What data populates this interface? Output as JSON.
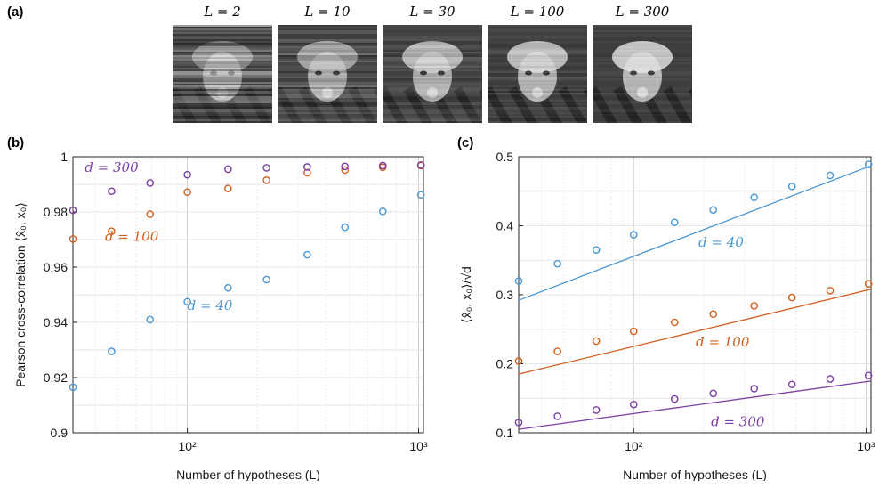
{
  "panels": {
    "a": "(a)",
    "b": "(b)",
    "c": "(c)"
  },
  "thumbnails": [
    {
      "label": "L = 2",
      "noise": 0.85
    },
    {
      "label": "L = 10",
      "noise": 0.55
    },
    {
      "label": "L = 30",
      "noise": 0.35
    },
    {
      "label": "L = 100",
      "noise": 0.22
    },
    {
      "label": "L = 300",
      "noise": 0.15
    }
  ],
  "chart_data": [
    {
      "type": "scatter",
      "xscale": "log",
      "xlim": [
        32,
        1050
      ],
      "ylim": [
        0.9,
        1.0
      ],
      "xlabel": "Number of hypotheses (L)",
      "ylabel": "Pearson cross-correlation ⟨x̂₀, x₀⟩",
      "xticks": [
        {
          "value": 100,
          "label": "10²"
        },
        {
          "value": 1000,
          "label": "10³"
        }
      ],
      "yticks": [
        0.9,
        0.92,
        0.94,
        0.96,
        0.98,
        1
      ],
      "ytick_labels": [
        "0.9",
        "0.92",
        "0.94",
        "0.96",
        "0.98",
        "1"
      ],
      "grid": true,
      "x": [
        32,
        47,
        69,
        100,
        150,
        220,
        330,
        480,
        700,
        1024
      ],
      "series": [
        {
          "name": "d = 40",
          "color": "#4a98d3",
          "values": [
            0.9165,
            0.9295,
            0.941,
            0.9475,
            0.9525,
            0.9555,
            0.9645,
            0.9745,
            0.9802,
            0.9862
          ],
          "label_at": [
            100,
            0.9445
          ]
        },
        {
          "name": "d = 100",
          "color": "#d2601f",
          "values": [
            0.9702,
            0.973,
            0.9792,
            0.9872,
            0.9885,
            0.9915,
            0.9942,
            0.9952,
            0.9962,
            0.9968
          ],
          "label_at": [
            44,
            0.9695
          ]
        },
        {
          "name": "d = 300",
          "color": "#7b3fa1",
          "values": [
            0.9806,
            0.9875,
            0.9905,
            0.9935,
            0.9955,
            0.996,
            0.9963,
            0.9965,
            0.9968,
            0.997
          ],
          "label_at": [
            36,
            0.9945
          ]
        }
      ]
    },
    {
      "type": "scatter",
      "xscale": "log",
      "xlim": [
        32,
        1050
      ],
      "ylim": [
        0.1,
        0.5
      ],
      "xlabel": "Number of hypotheses (L)",
      "ylabel": "⟨x̂₀, x₀⟩/√d",
      "xticks": [
        {
          "value": 100,
          "label": "10²"
        },
        {
          "value": 1000,
          "label": "10³"
        }
      ],
      "yticks": [
        0.1,
        0.2,
        0.3,
        0.4,
        0.5
      ],
      "ytick_labels": [
        "0.1",
        "0.2",
        "0.3",
        "0.4",
        "0.5"
      ],
      "grid": true,
      "x": [
        32,
        47,
        69,
        100,
        150,
        220,
        330,
        480,
        700,
        1024
      ],
      "series": [
        {
          "name": "d = 40",
          "color": "#4a98d3",
          "values": [
            0.32,
            0.345,
            0.365,
            0.387,
            0.405,
            0.423,
            0.441,
            0.457,
            0.473,
            0.489
          ],
          "fit": [
            [
              32,
              0.292
            ],
            [
              1050,
              0.487
            ]
          ],
          "label_at": [
            190,
            0.37
          ]
        },
        {
          "name": "d = 100",
          "color": "#d2601f",
          "values": [
            0.204,
            0.218,
            0.233,
            0.247,
            0.26,
            0.272,
            0.284,
            0.296,
            0.306,
            0.316
          ],
          "fit": [
            [
              32,
              0.185
            ],
            [
              1050,
              0.308
            ]
          ],
          "label_at": [
            185,
            0.225
          ]
        },
        {
          "name": "d = 300",
          "color": "#7b3fa1",
          "values": [
            0.115,
            0.124,
            0.133,
            0.141,
            0.149,
            0.157,
            0.164,
            0.17,
            0.178,
            0.183
          ],
          "fit": [
            [
              32,
              0.105
            ],
            [
              1050,
              0.175
            ]
          ],
          "label_at": [
            215,
            0.11
          ]
        }
      ]
    }
  ]
}
